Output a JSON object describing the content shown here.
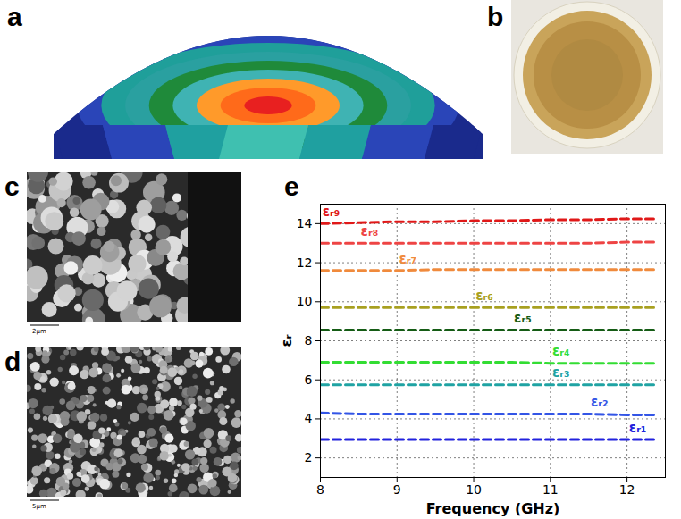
{
  "panel_labels": [
    "a",
    "b",
    "c",
    "d",
    "e"
  ],
  "scale_bars": {
    "c": "2μm",
    "d": "5μm"
  },
  "chart_data": {
    "type": "line",
    "x_label": "Frequency (GHz)",
    "y_label": "εᵣ",
    "xlim": [
      8,
      12.5
    ],
    "xticks": [
      8,
      9,
      10,
      11,
      12
    ],
    "ylim": [
      1,
      15
    ],
    "yticks": [
      2,
      4,
      6,
      8,
      10,
      12,
      14
    ],
    "grid": true,
    "line_style": "dashed",
    "x": [
      8,
      8.5,
      9,
      9.5,
      10,
      10.5,
      11,
      11.5,
      12,
      12.4
    ],
    "series": [
      {
        "name": "εᵣ₁",
        "color": "#2222dd",
        "values": [
          2.95,
          2.95,
          2.95,
          2.95,
          2.95,
          2.95,
          2.95,
          2.95,
          2.95,
          2.95
        ]
      },
      {
        "name": "εᵣ₂",
        "color": "#3355e6",
        "values": [
          4.3,
          4.25,
          4.25,
          4.25,
          4.25,
          4.25,
          4.25,
          4.25,
          4.2,
          4.2
        ]
      },
      {
        "name": "εᵣ₃",
        "color": "#1fa3a3",
        "values": [
          5.75,
          5.75,
          5.75,
          5.75,
          5.75,
          5.75,
          5.75,
          5.75,
          5.75,
          5.75
        ]
      },
      {
        "name": "εᵣ₄",
        "color": "#33dd33",
        "values": [
          6.9,
          6.9,
          6.9,
          6.9,
          6.9,
          6.9,
          6.85,
          6.85,
          6.85,
          6.85
        ]
      },
      {
        "name": "εᵣ₅",
        "color": "#155c15",
        "values": [
          8.55,
          8.55,
          8.55,
          8.55,
          8.55,
          8.55,
          8.55,
          8.55,
          8.55,
          8.55
        ]
      },
      {
        "name": "εᵣ₆",
        "color": "#a8a020",
        "values": [
          9.7,
          9.7,
          9.7,
          9.7,
          9.7,
          9.7,
          9.7,
          9.7,
          9.7,
          9.7
        ]
      },
      {
        "name": "εᵣ₇",
        "color": "#f08a3c",
        "values": [
          11.6,
          11.6,
          11.6,
          11.65,
          11.65,
          11.65,
          11.65,
          11.65,
          11.65,
          11.65
        ]
      },
      {
        "name": "εᵣ₈",
        "color": "#ee4444",
        "values": [
          13.0,
          13.0,
          13.0,
          13.0,
          13.0,
          13.0,
          13.0,
          13.0,
          13.05,
          13.05
        ]
      },
      {
        "name": "εᵣ₉",
        "color": "#e01818",
        "values": [
          14.0,
          14.05,
          14.1,
          14.1,
          14.15,
          14.15,
          14.2,
          14.2,
          14.25,
          14.25
        ]
      }
    ]
  }
}
